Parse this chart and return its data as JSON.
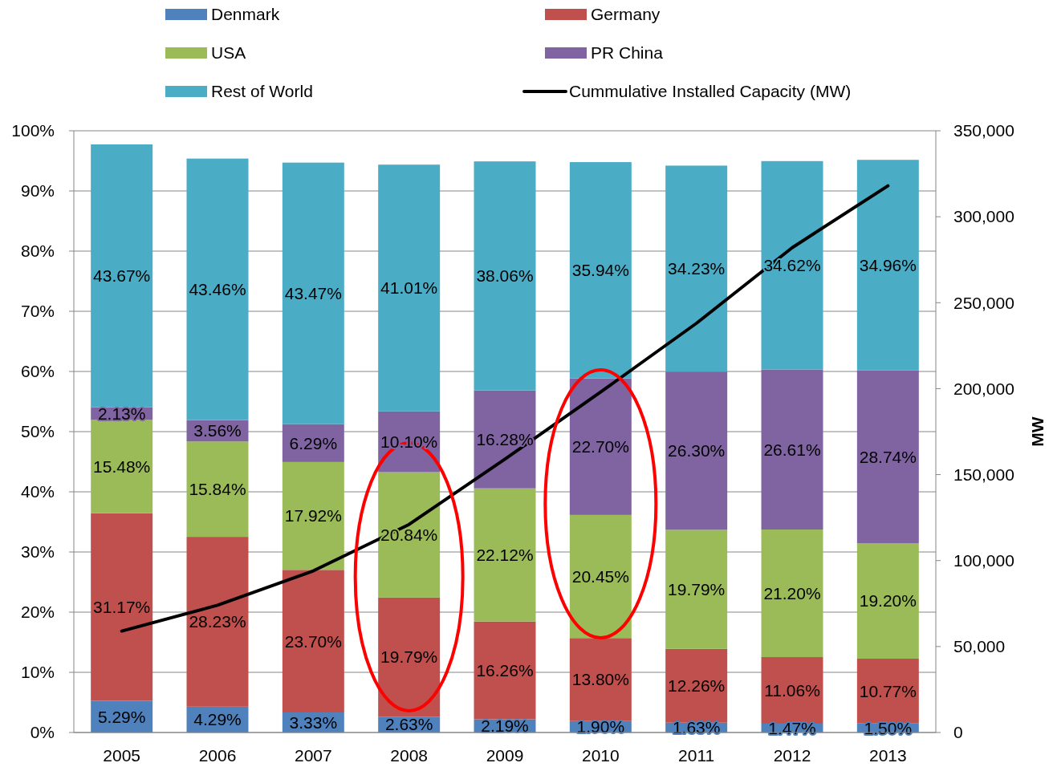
{
  "chart_data": {
    "type": "bar",
    "stacked": true,
    "categories": [
      "2005",
      "2006",
      "2007",
      "2008",
      "2009",
      "2010",
      "2011",
      "2012",
      "2013"
    ],
    "series": [
      {
        "name": "Denmark",
        "color": "#4f81bd",
        "values": [
          5.29,
          4.29,
          3.33,
          2.63,
          2.19,
          1.9,
          1.63,
          1.47,
          1.5
        ],
        "value_labels": [
          "5.29%",
          "4.29%",
          "3.33%",
          "2.63%",
          "2.19%",
          "1.90%",
          "1.63%",
          "1.47%",
          "1.50%"
        ]
      },
      {
        "name": "Germany",
        "color": "#c0504d",
        "values": [
          31.17,
          28.23,
          23.7,
          19.79,
          16.26,
          13.8,
          12.26,
          11.06,
          10.77
        ],
        "value_labels": [
          "31.17%",
          "28.23%",
          "23.70%",
          "19.79%",
          "16.26%",
          "13.80%",
          "12.26%",
          "11.06%",
          "10.77%"
        ]
      },
      {
        "name": "USA",
        "color": "#9bbb59",
        "values": [
          15.48,
          15.84,
          17.92,
          20.84,
          22.12,
          20.45,
          19.79,
          21.2,
          19.2
        ],
        "value_labels": [
          "15.48%",
          "15.84%",
          "17.92%",
          "20.84%",
          "22.12%",
          "20.45%",
          "19.79%",
          "21.20%",
          "19.20%"
        ]
      },
      {
        "name": "PR China",
        "color": "#8064a2",
        "values": [
          2.13,
          3.56,
          6.29,
          10.1,
          16.28,
          22.7,
          26.3,
          26.61,
          28.74
        ],
        "value_labels": [
          "2.13%",
          "3.56%",
          "6.29%",
          "10.10%",
          "16.28%",
          "22.70%",
          "26.30%",
          "26.61%",
          "28.74%"
        ]
      },
      {
        "name": "Rest of World",
        "color": "#4bacc6",
        "values": [
          43.67,
          43.46,
          43.47,
          41.01,
          38.06,
          35.94,
          34.23,
          34.62,
          34.96
        ],
        "value_labels": [
          "43.67%",
          "43.46%",
          "43.47%",
          "41.01%",
          "38.06%",
          "35.94%",
          "34.23%",
          "34.62%",
          "34.96%"
        ]
      },
      {
        "name": "Cummulative Installed Capacity (MW)",
        "type": "line",
        "axis": "y2",
        "color": "#000000",
        "values": [
          59000,
          74000,
          94000,
          121000,
          159000,
          198000,
          238000,
          282000,
          318000
        ]
      }
    ],
    "ylim": [
      0,
      100
    ],
    "yticks": [
      {
        "value": 0,
        "label": "0%"
      },
      {
        "value": 10,
        "label": "10%"
      },
      {
        "value": 20,
        "label": "20%"
      },
      {
        "value": 30,
        "label": "30%"
      },
      {
        "value": 40,
        "label": "40%"
      },
      {
        "value": 50,
        "label": "50%"
      },
      {
        "value": 60,
        "label": "60%"
      },
      {
        "value": 70,
        "label": "70%"
      },
      {
        "value": 80,
        "label": "80%"
      },
      {
        "value": 90,
        "label": "90%"
      },
      {
        "value": 100,
        "label": "100%"
      }
    ],
    "y2lim": [
      0,
      350000
    ],
    "y2ticks": [
      0,
      {
        "value": 50000,
        "label": "50,000"
      },
      {
        "value": 100000,
        "label": "100,000"
      },
      {
        "value": 150000,
        "label": "150,000"
      },
      {
        "value": 200000,
        "label": "200,000"
      },
      {
        "value": 250000,
        "label": "250,000"
      },
      {
        "value": 300000,
        "label": "300,000"
      },
      {
        "value": 350000,
        "label": "350,000"
      }
    ],
    "y2label": "MW",
    "grid": "y",
    "legend": "top",
    "marker": "none",
    "line_style": "solid"
  }
}
